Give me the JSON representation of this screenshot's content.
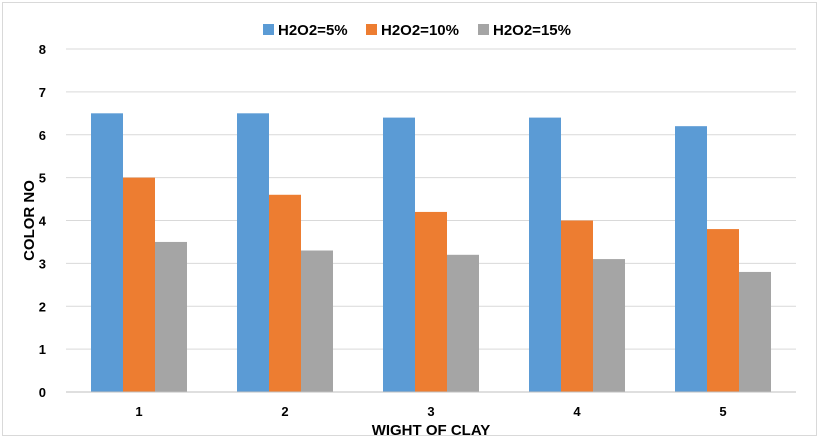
{
  "chart_data": {
    "type": "bar",
    "title": "",
    "xlabel": "WIGHT OF CLAY",
    "ylabel": "COLOR NO",
    "categories": [
      "1",
      "2",
      "3",
      "4",
      "5"
    ],
    "ylim": [
      0,
      8
    ],
    "yticks": [
      "0",
      "1",
      "2",
      "3",
      "4",
      "5",
      "6",
      "7",
      "8"
    ],
    "grid": true,
    "legend_position": "top",
    "series": [
      {
        "name": "H2O2=5%",
        "color": "#5b9bd5",
        "values": [
          6.5,
          6.5,
          6.4,
          6.4,
          6.2
        ]
      },
      {
        "name": "H2O2=10%",
        "color": "#ed7d31",
        "values": [
          5.0,
          4.6,
          4.2,
          4.0,
          3.8
        ]
      },
      {
        "name": "H2O2=15%",
        "color": "#a5a5a5",
        "values": [
          3.5,
          3.3,
          3.2,
          3.1,
          2.8
        ]
      }
    ]
  }
}
